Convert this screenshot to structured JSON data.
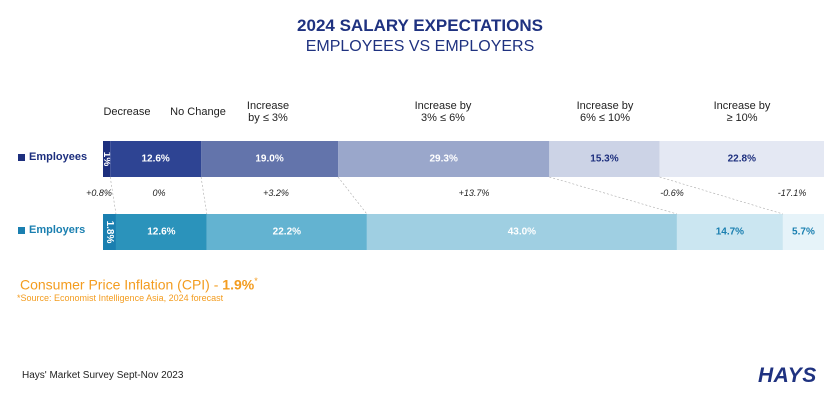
{
  "title": "2024 SALARY EXPECTATIONS",
  "subtitle": "EMPLOYEES VS EMPLOYERS",
  "colors": {
    "title": "#1f3280",
    "employees": [
      "#1d2f7e",
      "#2e4493",
      "#6374ab",
      "#9aa7cb",
      "#ccd3e6",
      "#e4e8f3"
    ],
    "employers": [
      "#1a7fb0",
      "#2b93bb",
      "#63b3d1",
      "#9fcfe2",
      "#cbe6f1",
      "#e6f3f9"
    ],
    "accent": "#f39c1f"
  },
  "chart_data": {
    "type": "bar",
    "stacked": true,
    "orientation": "horizontal",
    "categories": [
      "Decrease",
      "No Change",
      "Increase\nby ≤ 3%",
      "Increase by\n3% ≤ 6%",
      "Increase by\n6% ≤ 10%",
      "Increase by\n≥ 10%"
    ],
    "series": [
      {
        "name": "Employees",
        "values": [
          1,
          12.6,
          19.0,
          29.3,
          15.3,
          22.8
        ],
        "labels": [
          "1%",
          "12.6%",
          "19.0%",
          "29.3%",
          "15.3%",
          "22.8%"
        ]
      },
      {
        "name": "Employers",
        "values": [
          1.8,
          12.6,
          22.2,
          43.0,
          14.7,
          5.7
        ],
        "labels": [
          "1.8%",
          "12.6%",
          "22.2%",
          "43.0%",
          "14.7%",
          "5.7%"
        ]
      }
    ],
    "differences": [
      "+0.8%",
      "0%",
      "+3.2%",
      "+13.7%",
      "-0.6%",
      "-17.1%"
    ]
  },
  "cpi": {
    "label": "Consumer Price Inflation (CPI) - ",
    "value": "1.9%",
    "marker": "*",
    "source": "*Source: Economist Intelligence Asia, 2024 forecast"
  },
  "footer": "Hays' Market Survey Sept-Nov 2023",
  "logo": "HAYS"
}
